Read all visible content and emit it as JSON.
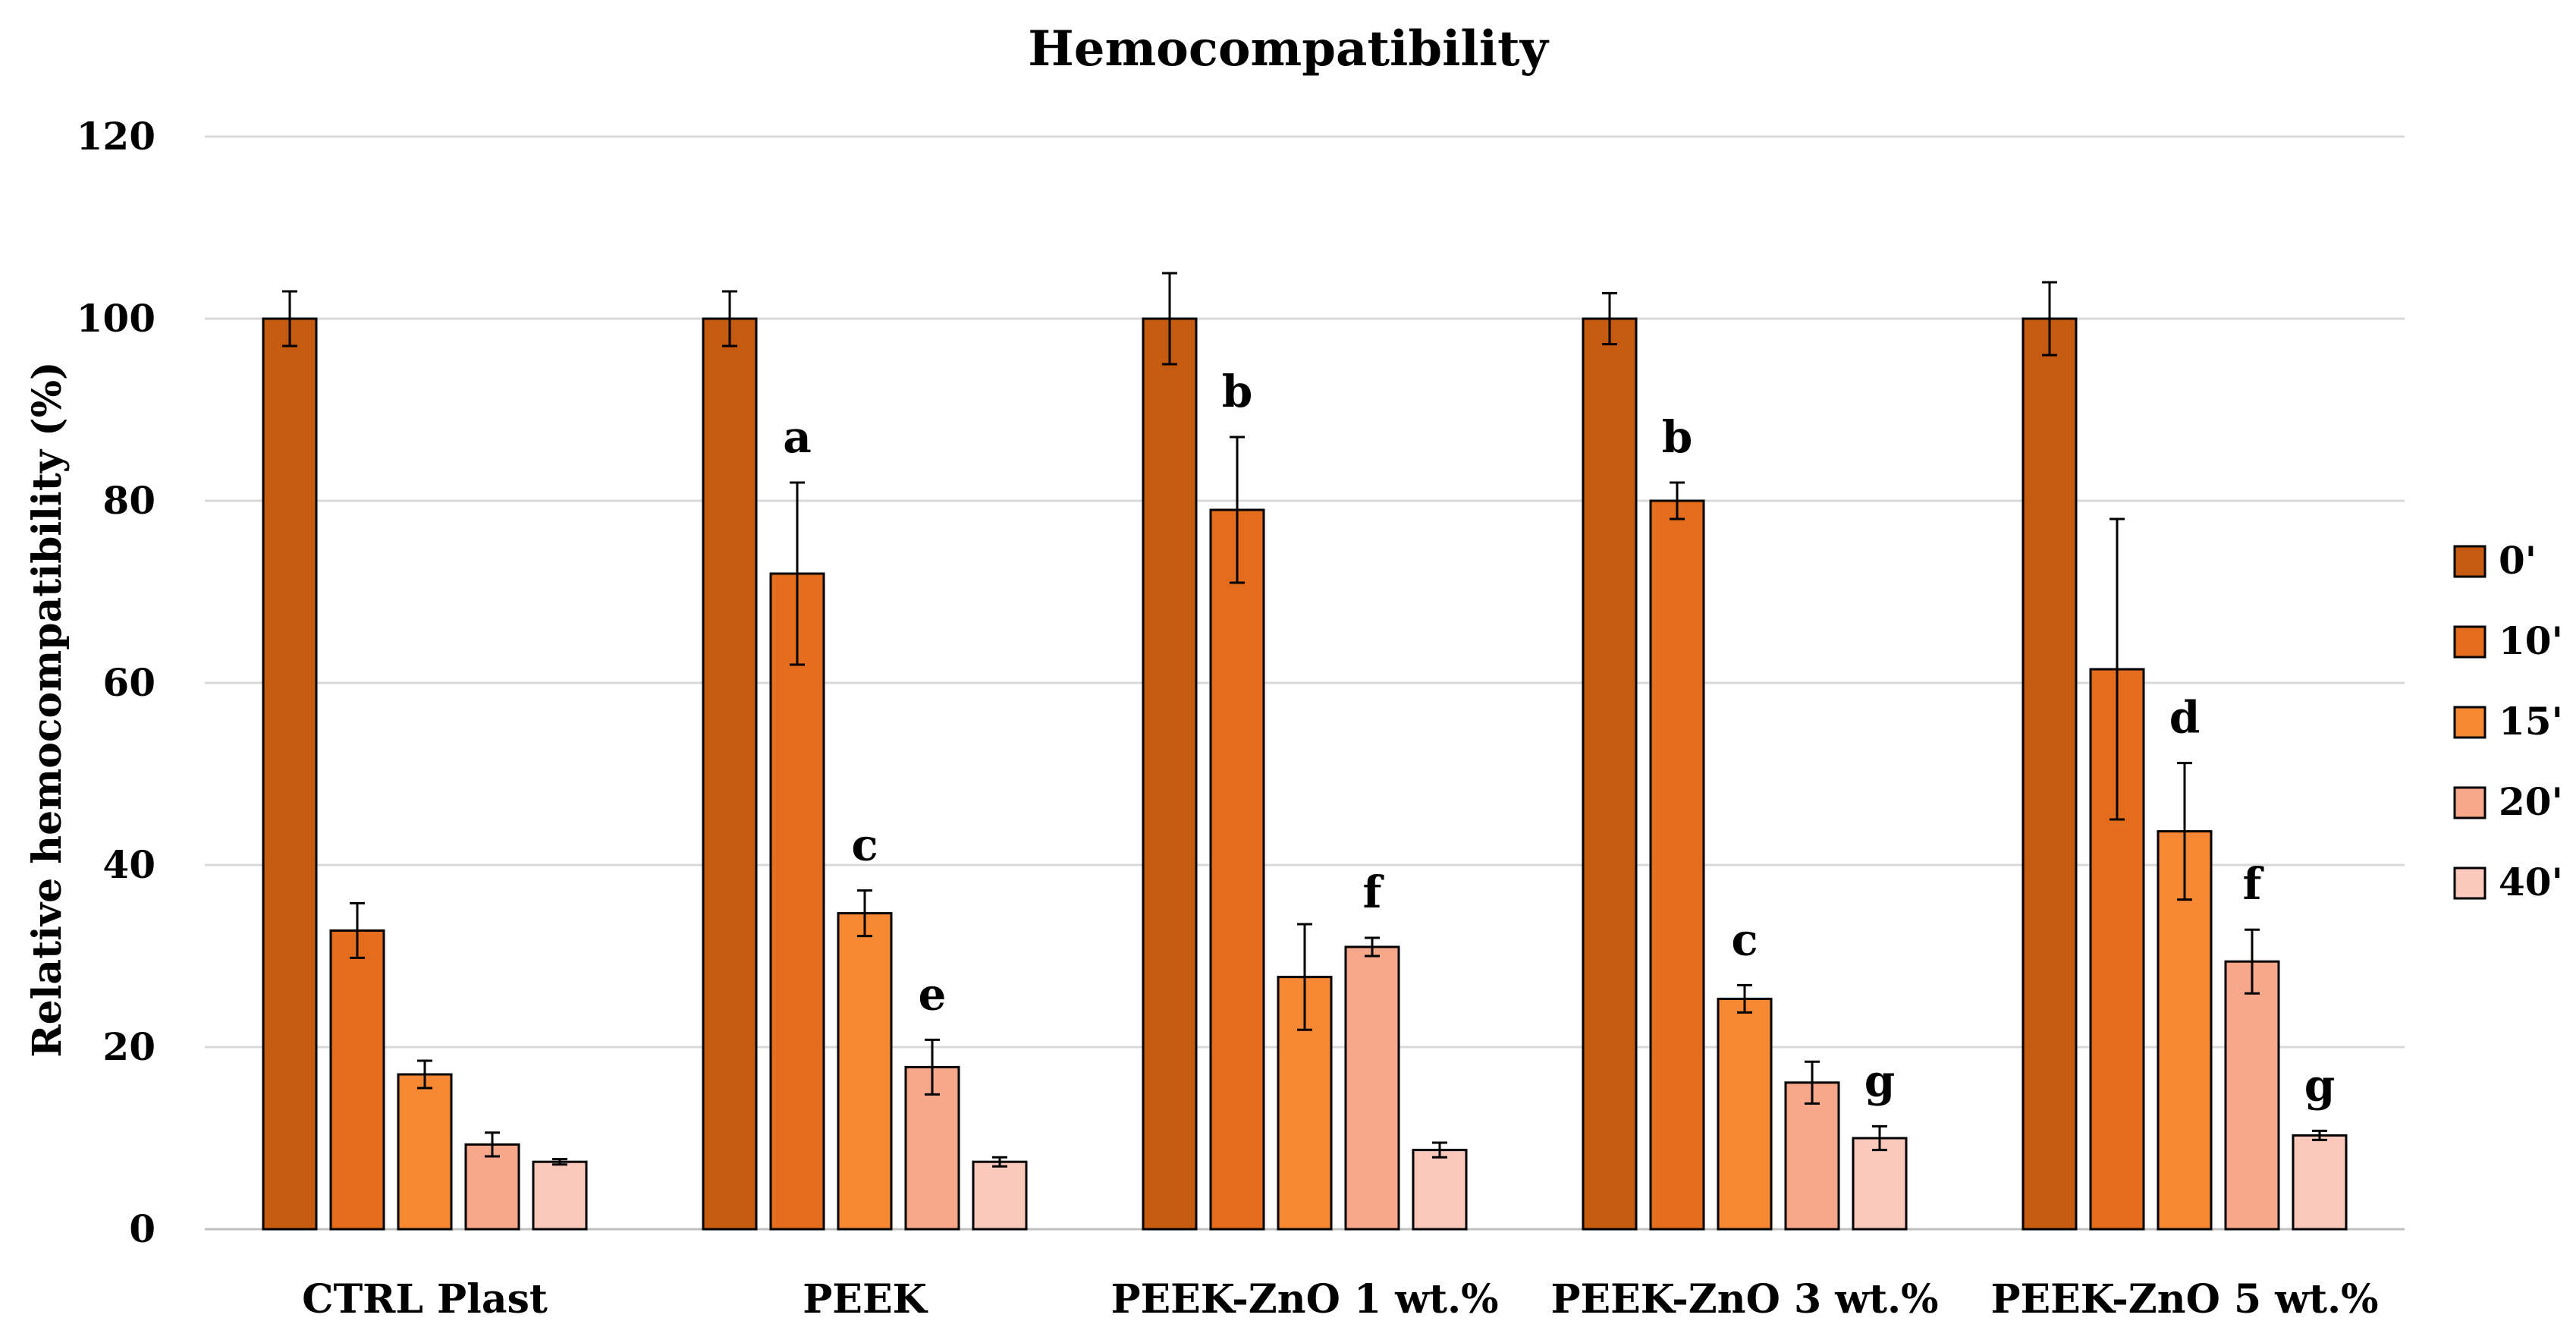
{
  "chart_data": {
    "type": "bar",
    "title": "Hemocompatibility",
    "ylabel": "Relative hemocompatibility (%)",
    "xlabel": "",
    "ylim": [
      0,
      120
    ],
    "yticks": [
      0,
      20,
      40,
      60,
      80,
      100,
      120
    ],
    "grid": true,
    "legend_position": "right",
    "categories": [
      "CTRL Plast",
      "PEEK",
      "PEEK-ZnO 1 wt.%",
      "PEEK-ZnO 3 wt.%",
      "PEEK-ZnO 5 wt.%"
    ],
    "series": [
      {
        "name": "0'",
        "color": "#c55a11",
        "values": [
          100,
          100,
          100,
          100,
          100
        ],
        "errors": [
          3,
          3,
          5,
          2.8,
          4
        ],
        "annotations": [
          "",
          "",
          "",
          "",
          ""
        ]
      },
      {
        "name": "10'",
        "color": "#e46c1d",
        "values": [
          32.8,
          72,
          79,
          80,
          61.5
        ],
        "errors": [
          3,
          10,
          8,
          2,
          16.5
        ],
        "annotations": [
          "",
          "a",
          "b",
          "b",
          ""
        ]
      },
      {
        "name": "15'",
        "color": "#f68833",
        "values": [
          17,
          34.7,
          27.7,
          25.3,
          43.7
        ],
        "errors": [
          1.5,
          2.5,
          5.8,
          1.5,
          7.5
        ],
        "annotations": [
          "",
          "c",
          "",
          "c",
          "d"
        ]
      },
      {
        "name": "20'",
        "color": "#f7a88a",
        "values": [
          9.3,
          17.8,
          31,
          16.1,
          29.4
        ],
        "errors": [
          1.3,
          3,
          1,
          2.3,
          3.5
        ],
        "annotations": [
          "",
          "e",
          "f",
          "",
          "f"
        ]
      },
      {
        "name": "40'",
        "color": "#fbc9bb",
        "values": [
          7.4,
          7.4,
          8.7,
          10,
          10.3
        ],
        "errors": [
          0.3,
          0.5,
          0.8,
          1.3,
          0.5
        ],
        "annotations": [
          "",
          "",
          "",
          "g",
          "g"
        ]
      }
    ]
  }
}
